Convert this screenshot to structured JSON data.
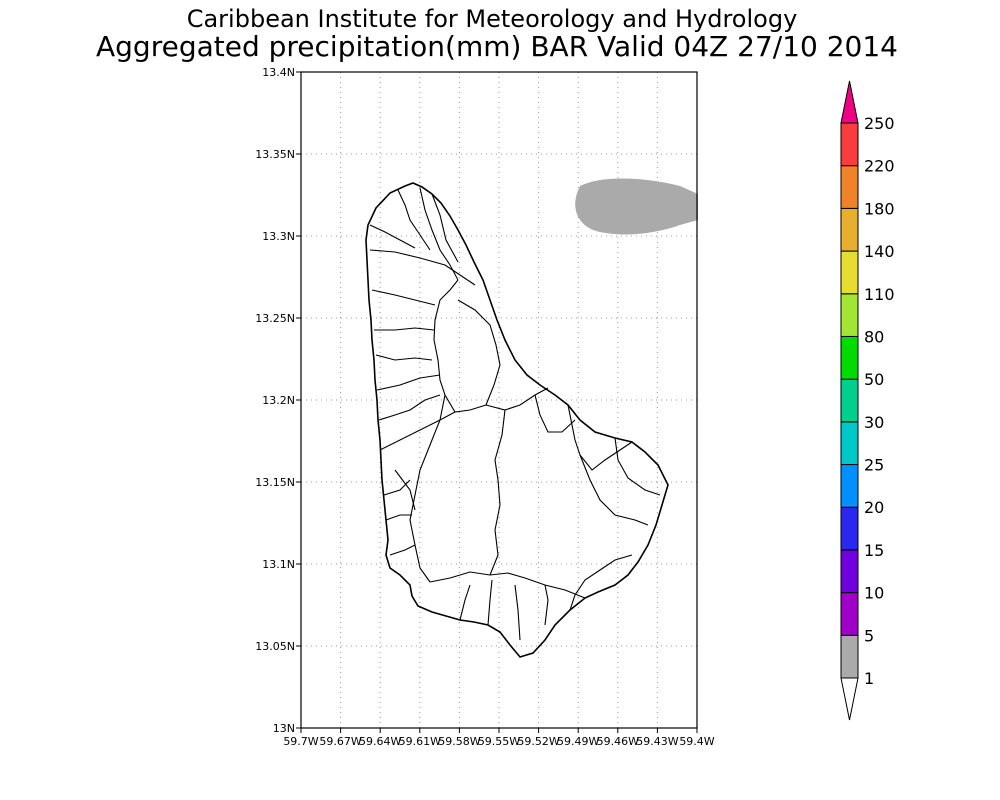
{
  "header": {
    "title_line1": "Caribbean Institute for Meteorology and Hydrology",
    "title_line2": "Aggregated precipitation(mm) BAR Valid 04Z 27/10 2014"
  },
  "map": {
    "lon_range": [
      -59.7,
      -59.4
    ],
    "lat_range": [
      13.0,
      13.4
    ],
    "grid": "dotted",
    "y_ticks": [
      "13.4N",
      "13.35N",
      "13.3N",
      "13.25N",
      "13.2N",
      "13.15N",
      "13.1N",
      "13.05N",
      "13N"
    ],
    "x_ticks": [
      "59.7W",
      "59.67W",
      "59.64W",
      "59.61W",
      "59.58W",
      "59.55W",
      "59.52W",
      "59.49W",
      "59.46W",
      "59.43W",
      "59.4W"
    ],
    "precip_area_color": "#aaaaaa"
  },
  "colorbar": {
    "levels": [
      "1",
      "5",
      "10",
      "15",
      "20",
      "25",
      "30",
      "50",
      "80",
      "110",
      "140",
      "180",
      "220",
      "250"
    ],
    "colors": [
      "#aaaaaa",
      "#a000c8",
      "#7000e0",
      "#2828f0",
      "#0090ff",
      "#00c8c8",
      "#00d08c",
      "#00dc00",
      "#a0e632",
      "#e6dc32",
      "#e6af2d",
      "#f08228",
      "#fa3c3c",
      "#f00082"
    ],
    "under_color": "#ffffff"
  }
}
